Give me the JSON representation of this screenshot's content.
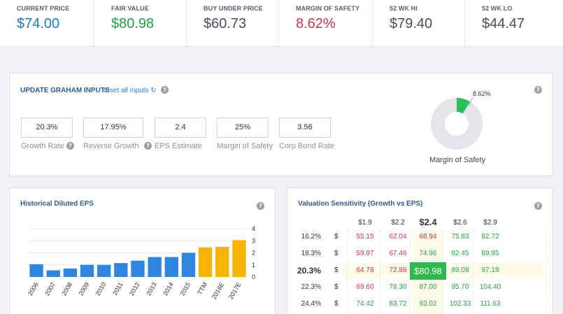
{
  "stats": [
    {
      "label": "CURRENT PRICE",
      "value": "$74.00",
      "color": "#1f7bc4"
    },
    {
      "label": "FAIR VALUE",
      "value": "$80.98",
      "color": "#21a047"
    },
    {
      "label": "BUY UNDER PRICE",
      "value": "$60.73",
      "color": "#4a4f57"
    },
    {
      "label": "MARGIN OF SAFETY",
      "value": "8.62%",
      "color": "#c8334f"
    },
    {
      "label": "52 WK HI",
      "value": "$79.40",
      "color": "#4a4f57"
    },
    {
      "label": "52 WK LO",
      "value": "$44.47",
      "color": "#4a4f57"
    }
  ],
  "graham": {
    "title": "UPDATE GRAHAM INPUTS",
    "reset_label": "reset all inputs",
    "inputs": [
      {
        "label": "Growth Rate",
        "value": "20.3%"
      },
      {
        "label": "Reverse Growth",
        "value": "17.95%"
      },
      {
        "label": "EPS Estimate",
        "value": "2.4"
      },
      {
        "label": "Margin of Safety",
        "value": "25%"
      },
      {
        "label": "Corp Bond Rate",
        "value": "3.56"
      }
    ],
    "mos_chart": {
      "label": "8.62%",
      "value": 8.62,
      "caption": "Margin of Safety",
      "fill_color": "#2bbd56",
      "rest_color": "#e3e5ea"
    }
  },
  "eps": {
    "title": "Historical Diluted EPS",
    "chart_data": {
      "type": "bar",
      "categories": [
        "2006",
        "2007",
        "2008",
        "2009",
        "2010",
        "2011",
        "2012",
        "2013",
        "2014",
        "2015",
        "TTM",
        "2016E",
        "2017E"
      ],
      "values": [
        1.05,
        0.55,
        0.7,
        1.0,
        1.0,
        1.15,
        1.35,
        1.65,
        1.65,
        2.0,
        2.45,
        2.5,
        3.05
      ],
      "kinds": [
        "hist",
        "hist",
        "hist",
        "hist",
        "hist",
        "hist",
        "hist",
        "hist",
        "hist",
        "hist",
        "est",
        "est",
        "est"
      ],
      "colors": {
        "hist": "#2e86de",
        "est": "#f5b400"
      },
      "yticks": [
        "4",
        "3",
        "2",
        "1",
        "0"
      ],
      "ylim": [
        0,
        4
      ],
      "grid": true
    }
  },
  "sensitivity": {
    "title": "Valuation Sensitivity (Growth vs EPS)",
    "eps_headers": [
      "$1.9",
      "$2.2",
      "$2.4",
      "$2.6",
      "$2.9"
    ],
    "growth_headers": [
      "16.2%",
      "18.3%",
      "20.3%",
      "22.3%",
      "24.4%"
    ],
    "currency": "$",
    "rows": [
      [
        "55.15",
        "62.04",
        "68.94",
        "75.83",
        "82.72"
      ],
      [
        "59.97",
        "67.46",
        "74.96",
        "82.45",
        "89.95"
      ],
      [
        "64.78",
        "72.88",
        "$80.98",
        "89.08",
        "97.18"
      ],
      [
        "69.60",
        "78.30",
        "87.00",
        "95.70",
        "104.40"
      ],
      [
        "74.42",
        "83.72",
        "93.02",
        "102.33",
        "111.63"
      ]
    ],
    "cell_colors": [
      [
        "red",
        "red",
        "red",
        "green",
        "green"
      ],
      [
        "red",
        "red",
        "green",
        "green",
        "green"
      ],
      [
        "red",
        "red",
        "hl",
        "green",
        "green"
      ],
      [
        "red",
        "green",
        "green",
        "green",
        "green"
      ],
      [
        "green",
        "green",
        "green",
        "green",
        "green"
      ]
    ]
  },
  "help_glyph": "?"
}
